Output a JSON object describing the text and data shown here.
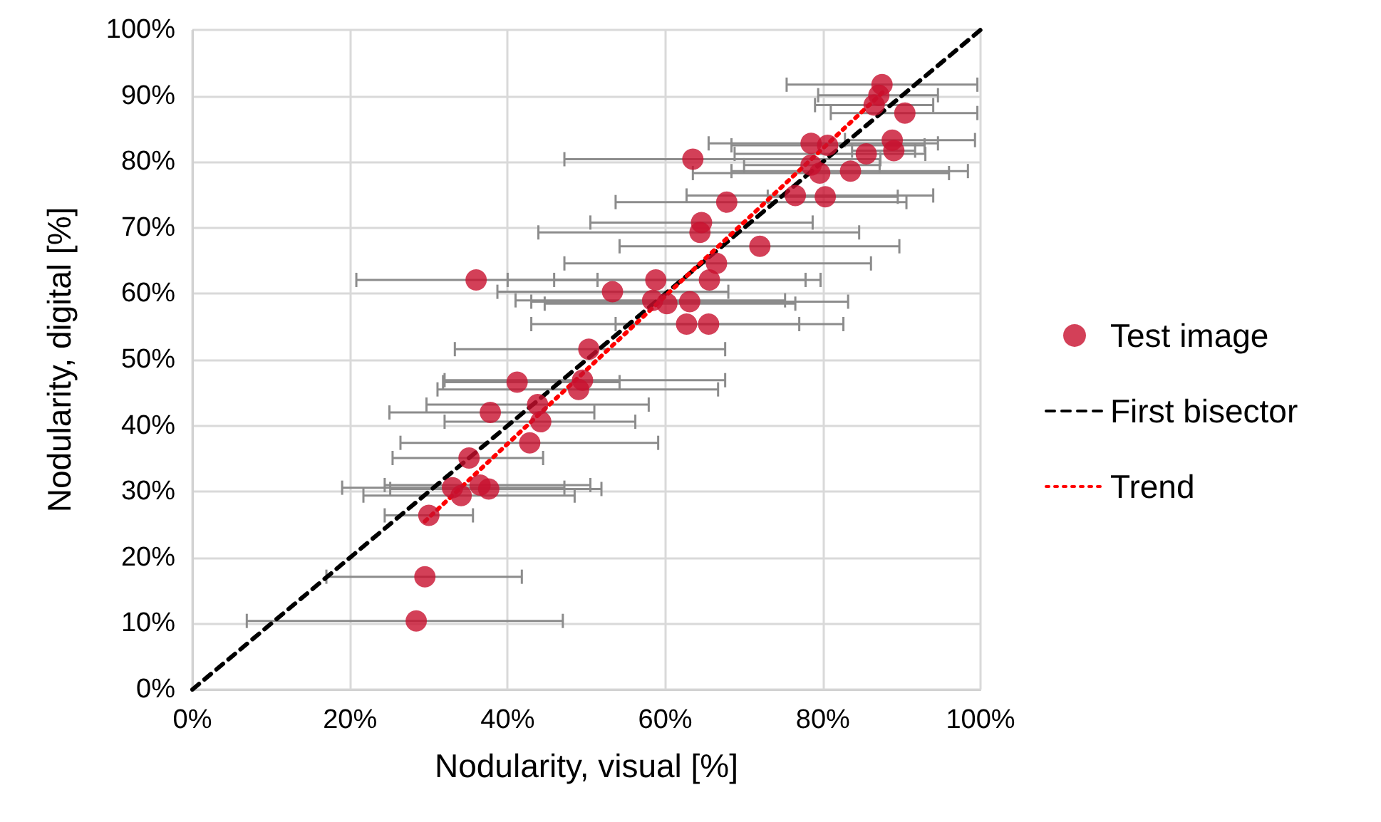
{
  "chart_data": {
    "type": "scatter",
    "xlabel": "Nodularity, visual [%]",
    "ylabel": "Nodularity, digital [%]",
    "xlim": [
      0,
      100
    ],
    "ylim": [
      0,
      100
    ],
    "xticks": [
      {
        "value": 0,
        "label": "0%"
      },
      {
        "value": 20,
        "label": "20%"
      },
      {
        "value": 40,
        "label": "40%"
      },
      {
        "value": 60,
        "label": "60%"
      },
      {
        "value": 80,
        "label": "80%"
      },
      {
        "value": 100,
        "label": "100%"
      }
    ],
    "yticks": [
      {
        "value": 0,
        "label": "0%"
      },
      {
        "value": 10,
        "label": "10%"
      },
      {
        "value": 20,
        "label": "20%"
      },
      {
        "value": 30,
        "label": "30%"
      },
      {
        "value": 40,
        "label": "40%"
      },
      {
        "value": 50,
        "label": "50%"
      },
      {
        "value": 60,
        "label": "60%"
      },
      {
        "value": 70,
        "label": "70%"
      },
      {
        "value": 80,
        "label": "80%"
      },
      {
        "value": 90,
        "label": "90%"
      },
      {
        "value": 100,
        "label": "100%"
      }
    ],
    "grid": true,
    "legend": "right",
    "marker": "circle",
    "series": [
      {
        "name": "Test image",
        "color": "#c8102e",
        "x": [
          28.4,
          29.5,
          30.0,
          33.0,
          34.1,
          36.5,
          37.6,
          35.1,
          42.8,
          44.2,
          37.8,
          43.8,
          41.2,
          49.0,
          49.5,
          50.3,
          62.7,
          65.5,
          58.4,
          60.2,
          63.1,
          53.3,
          58.8,
          36.0,
          65.6,
          66.5,
          72.0,
          64.4,
          64.6,
          63.5,
          87.5,
          87.1,
          86.5,
          90.4,
          78.5,
          80.6,
          88.8,
          89.0,
          85.5,
          78.5,
          79.6,
          83.5,
          67.8,
          76.5,
          80.3
        ],
        "values": [
          10.4,
          17.1,
          26.4,
          30.6,
          29.4,
          31.0,
          30.4,
          35.1,
          37.4,
          40.6,
          42.0,
          43.2,
          46.6,
          45.5,
          46.9,
          51.6,
          55.4,
          55.4,
          59.0,
          58.5,
          58.8,
          60.3,
          62.1,
          62.1,
          62.1,
          64.6,
          67.2,
          69.3,
          70.8,
          80.4,
          91.7,
          90.1,
          88.6,
          87.4,
          82.8,
          82.5,
          83.3,
          81.7,
          81.2,
          79.5,
          78.3,
          78.6,
          73.9,
          74.9,
          74.7
        ],
        "xerrors": [
          [
            6.9,
            47.0
          ],
          [
            17.0,
            41.8
          ],
          [
            24.4,
            35.6
          ],
          [
            19.0,
            47.2
          ],
          [
            21.7,
            48.5
          ],
          [
            24.4,
            50.5
          ],
          [
            25.1,
            51.9
          ],
          [
            25.4,
            44.5
          ],
          [
            26.4,
            59.1
          ],
          [
            32.0,
            56.2
          ],
          [
            25.0,
            51.0
          ],
          [
            29.7,
            57.9
          ],
          [
            31.8,
            54.2
          ],
          [
            31.1,
            66.7
          ],
          [
            32.0,
            67.6
          ],
          [
            33.3,
            67.6
          ],
          [
            43.0,
            77.0
          ],
          [
            53.7,
            82.6
          ],
          [
            41.0,
            75.2
          ],
          [
            44.7,
            76.5
          ],
          [
            43.0,
            83.2
          ],
          [
            38.7,
            68.0
          ],
          [
            40.0,
            77.8
          ],
          [
            20.8,
            51.4
          ],
          [
            45.9,
            79.7
          ],
          [
            47.2,
            86.1
          ],
          [
            54.2,
            89.7
          ],
          [
            43.9,
            84.6
          ],
          [
            50.5,
            78.7
          ],
          [
            47.2,
            87.3
          ],
          [
            75.4,
            99.6
          ],
          [
            79.4,
            94.6
          ],
          [
            79.0,
            94.0
          ],
          [
            81.0,
            99.6
          ],
          [
            65.5,
            94.6
          ],
          [
            68.4,
            92.9
          ],
          [
            82.8,
            99.3
          ],
          [
            83.7,
            91.7
          ],
          [
            68.8,
            93.0
          ],
          [
            70.0,
            87.2
          ],
          [
            63.5,
            96.0
          ],
          [
            68.4,
            98.4
          ],
          [
            53.7,
            90.6
          ],
          [
            62.7,
            94.0
          ],
          [
            73.0,
            89.5
          ]
        ]
      },
      {
        "name": "First bisector",
        "type": "line",
        "color": "#000000",
        "line_style": "dashed",
        "marker": "none",
        "x": [
          0,
          100
        ],
        "values": [
          0,
          100
        ]
      },
      {
        "name": "Trend",
        "type": "line",
        "color": "#ff0000",
        "line_style": "dotted",
        "marker": "none",
        "x": [
          29.5,
          88
        ],
        "values": [
          25.5,
          91
        ]
      }
    ]
  }
}
